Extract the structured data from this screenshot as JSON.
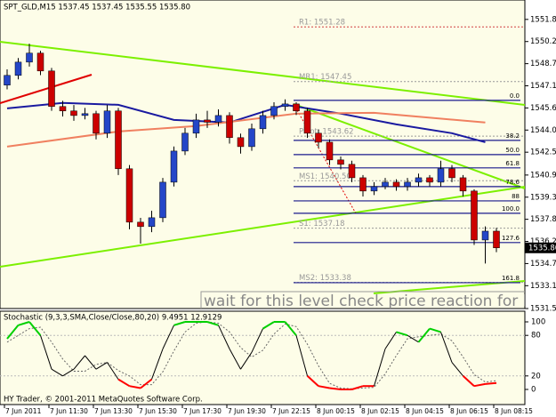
{
  "chart_data": [
    {
      "type": "candlestick",
      "title": "SPT_GLD,M15 1537.45 1537.45 1535.55 1535.80",
      "categories": [
        "7 Jun 2011",
        null,
        null,
        null,
        "7 Jun 11:30",
        null,
        null,
        null,
        "7 Jun 13:30",
        null,
        null,
        null,
        "7 Jun 15:30",
        null,
        null,
        null,
        "7 Jun 17:30",
        null,
        null,
        null,
        "7 Jun 19:30",
        null,
        null,
        null,
        "7 Jun 22:15",
        null,
        null,
        null,
        "8 Jun 00:15",
        null,
        null,
        null,
        "8 Jun 02:15",
        null,
        null,
        null,
        "8 Jun 04:15",
        null,
        null,
        null,
        "8 Jun 06:15",
        null,
        null,
        null,
        "8 Jun 08:15"
      ],
      "open": [
        1547.2,
        1547.88,
        1548.81,
        1549.44,
        1548.19,
        1545.7,
        1545.39,
        1545.07,
        1545.2,
        1543.83,
        1545.39,
        1541.34,
        1537.6,
        1537.29,
        1537.91,
        1540.4,
        1542.58,
        1543.83,
        1544.76,
        1544.6,
        1545.07,
        1543.52,
        1542.89,
        1544.14,
        1545.07,
        1545.7,
        1545.88,
        1545.39,
        1543.83,
        1543.2,
        1541.96,
        1541.65,
        1540.71,
        1539.78,
        1540.09,
        1540.4,
        1540.09,
        1540.4,
        1540.71,
        1540.4,
        1541.34,
        1540.71,
        1539.78,
        1536.35,
        1536.97
      ],
      "high": [
        1548.3,
        1549.1,
        1550.1,
        1549.6,
        1548.4,
        1546.1,
        1545.8,
        1545.6,
        1545.4,
        1545.8,
        1545.6,
        1541.6,
        1537.9,
        1538.4,
        1540.7,
        1542.9,
        1544.2,
        1545.2,
        1545.4,
        1545.5,
        1545.3,
        1543.8,
        1544.5,
        1545.4,
        1546.0,
        1546.2,
        1546.0,
        1545.6,
        1544.1,
        1543.4,
        1542.2,
        1541.9,
        1540.9,
        1540.4,
        1540.7,
        1540.6,
        1540.7,
        1541.0,
        1540.9,
        1541.9,
        1541.6,
        1540.9,
        1539.9,
        1537.3,
        1537.2
      ],
      "low": [
        1546.9,
        1547.6,
        1548.5,
        1547.9,
        1545.4,
        1545.0,
        1544.7,
        1544.8,
        1543.4,
        1543.5,
        1540.9,
        1537.1,
        1536.1,
        1536.9,
        1537.6,
        1540.1,
        1542.3,
        1543.5,
        1544.2,
        1544.3,
        1543.1,
        1542.4,
        1542.6,
        1543.8,
        1544.8,
        1545.4,
        1545.1,
        1543.5,
        1542.8,
        1541.6,
        1541.3,
        1540.4,
        1539.4,
        1539.5,
        1539.9,
        1539.8,
        1539.8,
        1540.1,
        1540.1,
        1540.1,
        1540.4,
        1539.4,
        1536.0,
        1534.7,
        1535.5
      ],
      "close": [
        1547.88,
        1548.81,
        1549.44,
        1548.19,
        1545.7,
        1545.39,
        1545.07,
        1545.2,
        1543.83,
        1545.39,
        1541.34,
        1537.6,
        1537.29,
        1537.91,
        1540.4,
        1542.58,
        1543.83,
        1544.76,
        1544.6,
        1545.07,
        1543.52,
        1542.89,
        1544.14,
        1545.07,
        1545.7,
        1545.88,
        1545.39,
        1543.83,
        1543.2,
        1541.96,
        1541.65,
        1540.71,
        1539.78,
        1540.09,
        1540.4,
        1540.09,
        1540.4,
        1540.71,
        1540.4,
        1541.34,
        1540.71,
        1539.78,
        1536.35,
        1536.97,
        1535.8
      ],
      "up_color": "#2446c8",
      "down_color": "#cc0000",
      "ylim": [
        1531.55,
        1553.16
      ],
      "yticks": [
        {
          "value": 1551.8,
          "label": "1551.80"
        },
        {
          "value": 1550.25,
          "label": "1550.25"
        },
        {
          "value": 1548.7,
          "label": "1548.70"
        },
        {
          "value": 1547.15,
          "label": "1547.15"
        },
        {
          "value": 1545.6,
          "label": "1545.60"
        },
        {
          "value": 1544.05,
          "label": "1544.05"
        },
        {
          "value": 1542.5,
          "label": "1542.50"
        },
        {
          "value": 1540.9,
          "label": "1540.90"
        },
        {
          "value": 1539.35,
          "label": "1539.35"
        },
        {
          "value": 1537.8,
          "label": "1537.80"
        },
        {
          "value": 1536.25,
          "label": "1536.25"
        },
        {
          "value": 1534.7,
          "label": "1534.70"
        },
        {
          "value": 1533.15,
          "label": "1533.15"
        },
        {
          "value": 1531.55,
          "label": "1531.55"
        }
      ],
      "moving_averages": [
        {
          "color": "#1a1aa0",
          "x": [
            0,
            5,
            10,
            15,
            20,
            25,
            30,
            35,
            40,
            43
          ],
          "values": [
            1545.57,
            1545.95,
            1545.82,
            1544.76,
            1544.58,
            1545.82,
            1545.2,
            1544.45,
            1543.83,
            1543.2
          ]
        },
        {
          "color": "#f08060",
          "x": [
            0,
            10,
            17,
            26,
            33,
            43
          ],
          "values": [
            1542.89,
            1543.95,
            1544.33,
            1545.2,
            1545.26,
            1544.58
          ]
        }
      ],
      "fib_levels": {
        "color": "#1a1a8c",
        "labels": [
          "0.0",
          "38.2",
          "50.0",
          "61.8",
          "78.6",
          "88",
          "100.0",
          "127.6",
          "161.8"
        ],
        "prices": [
          1546.13,
          1543.33,
          1542.33,
          1541.4,
          1540.09,
          1539.09,
          1538.22,
          1536.17,
          1533.36
        ]
      },
      "pivots": [
        {
          "label": "R1: 1551.28",
          "value": 1551.28
        },
        {
          "label": "MR1: 1547.45",
          "value": 1547.45
        },
        {
          "label": "Pivot: 1543.62",
          "value": 1543.62
        },
        {
          "label": "MS1: 1540.50",
          "value": 1540.5
        },
        {
          "label": "S1: 1537.18",
          "value": 1537.18
        },
        {
          "label": "MS2: 1533.38",
          "value": 1533.38
        }
      ],
      "current_price": {
        "value": 1535.8,
        "label": "1535.80"
      },
      "annotation": "wait for this level check price reaction for bu"
    },
    {
      "type": "stochastic",
      "title": "Stochastic (9,3,3,SMA,Close/Close,80,20) 9.4951 12.9129",
      "series": [
        {
          "color": "#000000",
          "values": [
            75,
            95,
            100,
            80,
            30,
            20,
            30,
            50,
            30,
            40,
            15,
            5,
            2,
            15,
            60,
            95,
            100,
            100,
            100,
            95,
            60,
            30,
            55,
            90,
            100,
            100,
            80,
            20,
            5,
            2,
            0,
            0,
            5,
            5,
            60,
            85,
            80,
            70,
            90,
            85,
            40,
            20,
            5,
            8,
            9.4951
          ]
        },
        {
          "color": "#666666",
          "dashed": true,
          "values": [
            70,
            80,
            90,
            92,
            70,
            45,
            27,
            27,
            37,
            40,
            28,
            20,
            7,
            7,
            26,
            57,
            85,
            98,
            100,
            98,
            85,
            62,
            48,
            58,
            82,
            97,
            93,
            67,
            35,
            9,
            2,
            1,
            2,
            3,
            23,
            50,
            75,
            78,
            80,
            82,
            72,
            48,
            22,
            11,
            12.9129
          ]
        }
      ],
      "ylim": [
        0,
        100
      ],
      "yticks": [
        100,
        80,
        20,
        0
      ],
      "levels": [
        80,
        20
      ],
      "high_color": "#00d000",
      "low_color": "#ff0000"
    }
  ],
  "footer": "HY Trader, © 2001-2011 MetaQuotes Software Corp."
}
